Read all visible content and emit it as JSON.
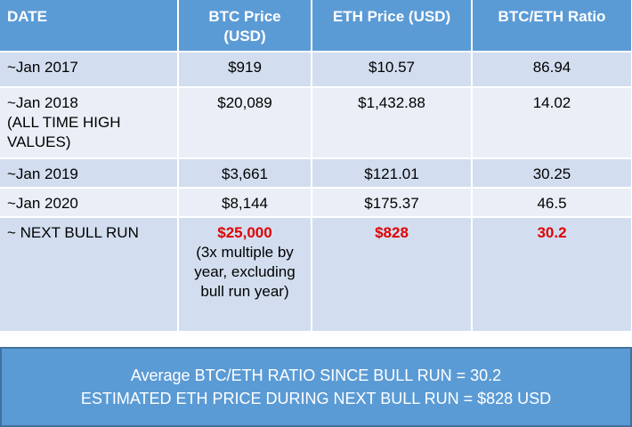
{
  "table": {
    "header": [
      "DATE",
      "BTC Price (USD)",
      "ETH Price (USD)",
      "BTC/ETH Ratio"
    ],
    "rows": [
      [
        "~Jan 2017",
        "$919",
        "$10.57",
        "86.94"
      ],
      [
        "~Jan 2018\n(ALL TIME HIGH\nVALUES)",
        "$20,089",
        "$1,432.88",
        "14.02"
      ],
      [
        "~Jan 2019",
        "$3,661",
        "$121.01",
        "30.25"
      ],
      [
        "~Jan 2020",
        "$8,144",
        "$175.37",
        "46.5"
      ],
      [
        "~ NEXT BULL RUN",
        "$25,000",
        "$828",
        "30.2"
      ]
    ],
    "btc_note": "(3x multiple by\nyear, excluding\nbull run year)"
  },
  "summary": {
    "line1": "Average BTC/ETH RATIO SINCE BULL RUN  =  30.2",
    "line2": "ESTIMATED ETH PRICE DURING NEXT BULL RUN = $828 USD"
  }
}
